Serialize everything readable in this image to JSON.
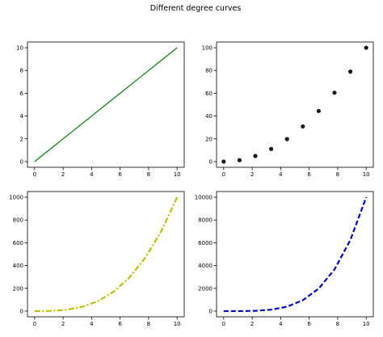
{
  "figure": {
    "title": "Different degree curves"
  },
  "chart_data": [
    {
      "type": "line",
      "position": "top-left",
      "x": [
        0,
        1.1111,
        2.2222,
        3.3333,
        4.4444,
        5.5556,
        6.6667,
        7.7778,
        8.8889,
        10
      ],
      "y": [
        0,
        1.1111,
        2.2222,
        3.3333,
        4.4444,
        5.5556,
        6.6667,
        7.7778,
        8.8889,
        10
      ],
      "xlim": [
        -0.5,
        10.5
      ],
      "ylim": [
        -0.5,
        10.5
      ],
      "xticks": [
        0,
        2,
        4,
        6,
        8,
        10
      ],
      "yticks": [
        0,
        2,
        4,
        6,
        8,
        10
      ],
      "color": "#228B22",
      "linestyle": "solid",
      "marker": "none",
      "grid": false
    },
    {
      "type": "scatter",
      "position": "top-right",
      "x": [
        0,
        1.1111,
        2.2222,
        3.3333,
        4.4444,
        5.5556,
        6.6667,
        7.7778,
        8.8889,
        10
      ],
      "y": [
        0,
        1.23,
        4.94,
        11.11,
        19.75,
        30.86,
        44.44,
        60.49,
        79.01,
        100
      ],
      "xlim": [
        -0.5,
        10.5
      ],
      "ylim": [
        -5,
        105
      ],
      "xticks": [
        0,
        2,
        4,
        6,
        8,
        10
      ],
      "yticks": [
        0,
        20,
        40,
        60,
        80,
        100
      ],
      "color": "#1a1a1a",
      "marker": "circle",
      "grid": false
    },
    {
      "type": "line",
      "position": "bottom-left",
      "x": [
        0,
        1.1111,
        2.2222,
        3.3333,
        4.4444,
        5.5556,
        6.6667,
        7.7778,
        8.8889,
        10
      ],
      "y": [
        0,
        1.37,
        10.97,
        37.04,
        87.79,
        171.47,
        296.3,
        470.51,
        702.33,
        1000
      ],
      "xlim": [
        -0.5,
        10.5
      ],
      "ylim": [
        -50,
        1050
      ],
      "xticks": [
        0,
        2,
        4,
        6,
        8,
        10
      ],
      "yticks": [
        0,
        200,
        400,
        600,
        800,
        1000
      ],
      "color": "#BFBF00",
      "linestyle": "dashdot",
      "marker": "none",
      "grid": false
    },
    {
      "type": "line",
      "position": "bottom-right",
      "x": [
        0,
        1.1111,
        2.2222,
        3.3333,
        4.4444,
        5.5556,
        6.6667,
        7.7778,
        8.8889,
        10
      ],
      "y": [
        0,
        1.52,
        24.39,
        123.46,
        390.18,
        952.6,
        1975.31,
        3659.5,
        6242.95,
        10000
      ],
      "xlim": [
        -0.5,
        10.5
      ],
      "ylim": [
        -500,
        10500
      ],
      "xticks": [
        0,
        2,
        4,
        6,
        8,
        10
      ],
      "yticks": [
        0,
        2000,
        4000,
        6000,
        8000,
        10000
      ],
      "color": "#0000CD",
      "linestyle": "dashed",
      "marker": "none",
      "grid": false
    }
  ]
}
